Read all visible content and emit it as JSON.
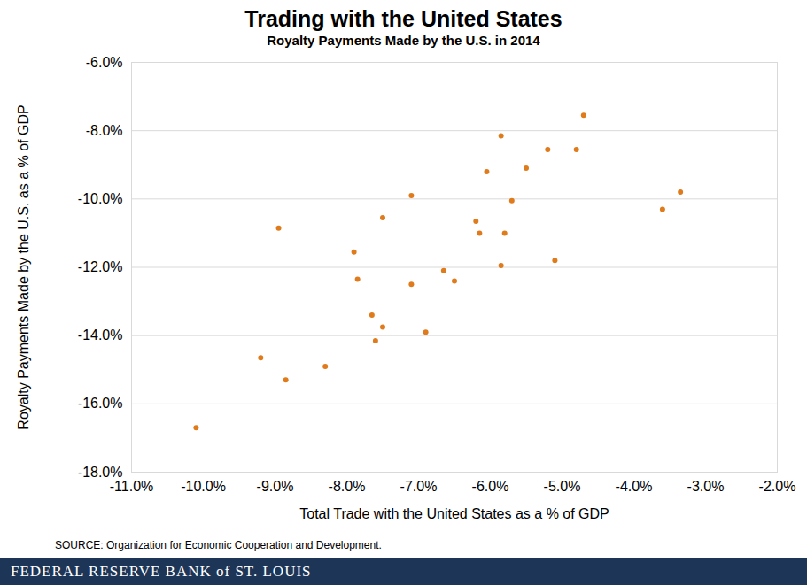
{
  "chart_data": {
    "type": "scatter",
    "title": "Trading with the United States",
    "subtitle": "Royalty Payments Made by the U.S. in 2014",
    "x_label": "Total Trade with the United States as a % of GDP",
    "y_label": "Royalty Payments Made by the U.S. as a % of GDP",
    "source": "SOURCE: Organization for Economic Cooperation and Development.",
    "footer": "FEDERAL RESERVE BANK of ST. LOUIS",
    "x": [
      -10.1,
      -9.2,
      -8.95,
      -8.85,
      -8.3,
      -7.9,
      -7.85,
      -7.65,
      -7.6,
      -7.5,
      -7.5,
      -7.1,
      -7.1,
      -6.9,
      -6.65,
      -6.5,
      -6.2,
      -6.15,
      -6.05,
      -5.85,
      -5.85,
      -5.8,
      -5.7,
      -5.5,
      -5.2,
      -5.1,
      -4.8,
      -4.7,
      -3.6,
      -3.35
    ],
    "values": [
      -16.7,
      -14.65,
      -10.85,
      -15.3,
      -14.9,
      -11.55,
      -12.35,
      -13.4,
      -14.15,
      -13.75,
      -10.55,
      -9.9,
      -12.5,
      -13.9,
      -12.1,
      -12.4,
      -10.65,
      -11.0,
      -9.2,
      -8.15,
      -11.95,
      -11.0,
      -10.05,
      -9.1,
      -8.55,
      -11.8,
      -8.55,
      -7.55,
      -10.3,
      -9.8
    ],
    "color": "#e07b1c",
    "marker": "circle",
    "xlim": [
      -11,
      -2
    ],
    "xticks": [
      {
        "value": -11,
        "label": "-11.0%"
      },
      {
        "value": -10,
        "label": "-10.0%"
      },
      {
        "value": -9,
        "label": "-9.0%"
      },
      {
        "value": -8,
        "label": "-8.0%"
      },
      {
        "value": -7,
        "label": "-7.0%"
      },
      {
        "value": -6,
        "label": "-6.0%"
      },
      {
        "value": -5,
        "label": "-5.0%"
      },
      {
        "value": -4,
        "label": "-4.0%"
      },
      {
        "value": -3,
        "label": "-3.0%"
      },
      {
        "value": -2,
        "label": "-2.0%"
      }
    ],
    "ylim": [
      -18,
      -6
    ],
    "yticks": [
      {
        "value": -18,
        "label": "-18.0%"
      },
      {
        "value": -16,
        "label": "-16.0%"
      },
      {
        "value": -14,
        "label": "-14.0%"
      },
      {
        "value": -12,
        "label": "-12.0%"
      },
      {
        "value": -10,
        "label": "-10.0%"
      },
      {
        "value": -8,
        "label": "-8.0%"
      },
      {
        "value": -6,
        "label": "-6.0%"
      }
    ],
    "grid": "y"
  }
}
